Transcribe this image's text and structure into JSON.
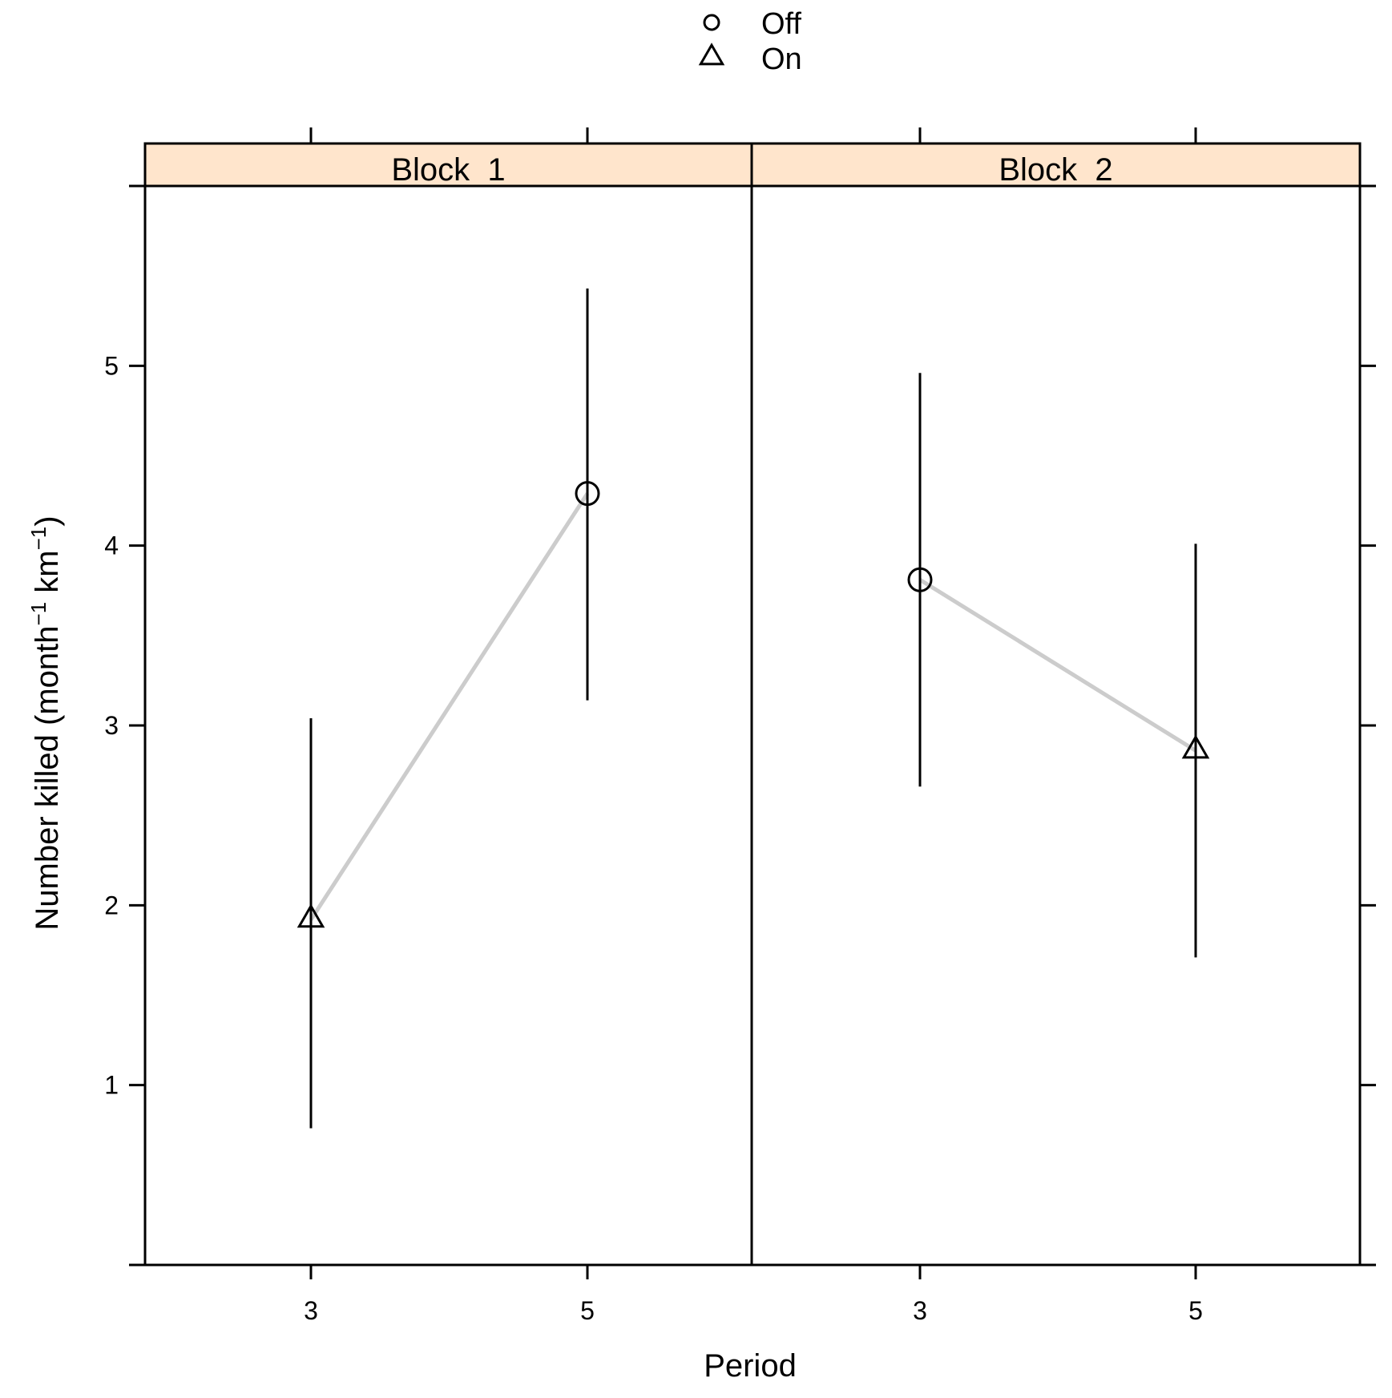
{
  "chart_data": {
    "type": "scatter",
    "xlabel": "Period",
    "ylabel": "Number killed (month",
    "ylabel_parts": [
      {
        "text": "Number killed (month",
        "sup": false
      },
      {
        "text": "−1",
        "sup": true
      },
      {
        "text": " km",
        "sup": false
      },
      {
        "text": "−1",
        "sup": true
      },
      {
        "text": ")",
        "sup": false
      }
    ],
    "legend": {
      "position": "top-center",
      "entries": [
        {
          "label": "Off",
          "marker": "circle"
        },
        {
          "label": "On",
          "marker": "triangle"
        }
      ]
    },
    "ylim": [
      0,
      6
    ],
    "yticks": [
      1,
      2,
      3,
      4,
      5
    ],
    "yticks_labels": [
      "1",
      "2",
      "3",
      "4",
      "5"
    ],
    "xticks": [
      3,
      5
    ],
    "xticks_labels": [
      "3",
      "5"
    ],
    "panels": [
      {
        "title": "Block_1",
        "points": [
          {
            "x": 3,
            "y": 1.92,
            "lower": 0.76,
            "upper": 3.04,
            "group": "On"
          },
          {
            "x": 5,
            "y": 4.29,
            "lower": 3.14,
            "upper": 5.43,
            "group": "Off"
          }
        ]
      },
      {
        "title": "Block_2",
        "points": [
          {
            "x": 3,
            "y": 3.81,
            "lower": 2.66,
            "upper": 4.96,
            "group": "Off"
          },
          {
            "x": 5,
            "y": 2.86,
            "lower": 1.71,
            "upper": 4.01,
            "group": "On"
          }
        ]
      }
    ],
    "colors": {
      "strip": "#ffe5cc",
      "line": "#cccccc",
      "ink": "#000000"
    }
  }
}
